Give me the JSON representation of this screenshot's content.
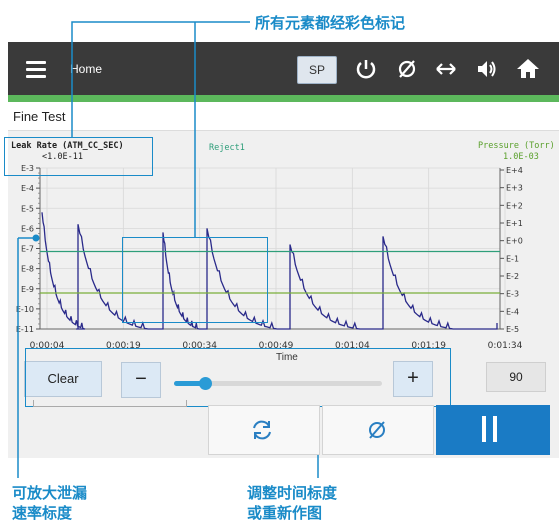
{
  "annotations": {
    "top": "所有元素都经彩色标记",
    "left_line1": "可放大泄漏",
    "left_line2": "速率标度",
    "right_line1": "调整时间标度",
    "right_line2": "或重新作图"
  },
  "header": {
    "home": "Home",
    "sp_label": "SP"
  },
  "title": "Fine Test",
  "chart_labels": {
    "leak_rate": "Leak Rate (ATM_CC_SEC)",
    "leak_value": "<1.0E-11",
    "reject": "Reject1",
    "pressure": "Pressure (Torr)",
    "pressure_value": "1.0E-03",
    "time_label": "Time"
  },
  "chart_data": {
    "type": "line",
    "x_ticks": [
      "0:00:04",
      "0:00:19",
      "0:00:34",
      "0:00:49",
      "0:01:04",
      "0:01:19",
      "0:01:34"
    ],
    "y_left_ticks": [
      "E-3",
      "E-4",
      "E-5",
      "E-6",
      "E-7",
      "E-8",
      "E-9",
      "E-10",
      "E-11"
    ],
    "y_right_ticks": [
      "E+4",
      "E+3",
      "E+2",
      "E+1",
      "E+0",
      "E-1",
      "E-2",
      "E-3",
      "E-4",
      "E-5"
    ],
    "reject_level_log": -7,
    "pressure_level_log": -3,
    "colors": {
      "trace": "#2a2a8a",
      "reject": "#2e9e7a",
      "pressure": "#7aae3a",
      "grid": "#d8d8d8"
    }
  },
  "controls": {
    "clear": "Clear",
    "minus": "−",
    "plus": "+",
    "zoom_value": "90",
    "slider_level": 0.15
  },
  "colors": {
    "callout": "#1a8bc8",
    "play_button": "#1a7bc5",
    "header": "#3a3a3a",
    "green_bar": "#5cb85c"
  }
}
